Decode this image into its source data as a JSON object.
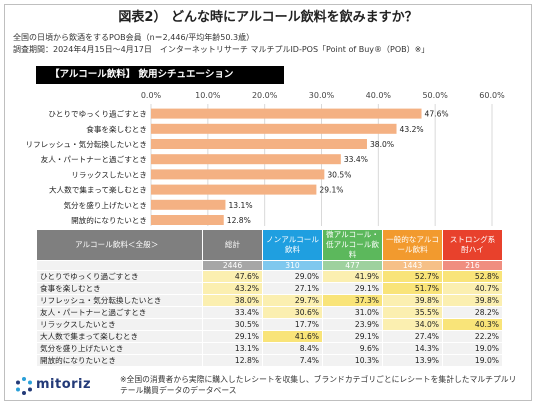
{
  "title": "図表2） どんな時にアルコール飲料を飲みますか？",
  "meta": {
    "line1": "全国の日頃から飲酒をするPOB会員（n＝2,446/平均年齢50.3歳）",
    "line2": "調査期間：2024年4月15日～4月17日　インターネットリサーチ マルチプルID-POS「Point of Buy®（POB）※」"
  },
  "colors": {
    "bar": "#f4b183",
    "grid": "#d9d9d9"
  },
  "chart_data": {
    "type": "bar",
    "orientation": "horizontal",
    "title": "【アルコール飲料】 飲用シチュエーション",
    "categories": [
      "ひとりでゆっくり過ごすとき",
      "食事を楽しむとき",
      "リフレッシュ・気分転換したいとき",
      "友人・パートナーと過ごすとき",
      "リラックスしたいとき",
      "大人数で集まって楽しむとき",
      "気分を盛り上げたいとき",
      "開放的になりたいとき"
    ],
    "values": [
      47.6,
      43.2,
      38.0,
      33.4,
      30.5,
      29.1,
      13.1,
      12.8
    ],
    "value_labels": [
      "47.6%",
      "43.2%",
      "38.0%",
      "33.4%",
      "30.5%",
      "29.1%",
      "13.1%",
      "12.8%"
    ],
    "xlim": [
      0,
      60
    ],
    "ticks": [
      "0.0%",
      "10.0%",
      "20.0%",
      "30.0%",
      "40.0%",
      "50.0%",
      "60.0%"
    ],
    "grid": true
  },
  "table": {
    "header_label": "アルコール飲料＜全般＞",
    "columns": [
      "総計",
      "ノンアルコール飲料",
      "微アルコール・低アルコール飲料",
      "一般的なアルコール飲料",
      "ストロング系酎ハイ"
    ],
    "counts": [
      "2446",
      "310",
      "477",
      "1443",
      "216"
    ],
    "rows": [
      {
        "label": "ひとりでゆっくり過ごすとき",
        "values": [
          "47.6%",
          "29.0%",
          "41.9%",
          "52.7%",
          "52.8%"
        ]
      },
      {
        "label": "食事を楽しむとき",
        "values": [
          "43.2%",
          "27.1%",
          "29.1%",
          "51.7%",
          "40.7%"
        ]
      },
      {
        "label": "リフレッシュ・気分転換したいとき",
        "values": [
          "38.0%",
          "29.7%",
          "37.3%",
          "39.8%",
          "39.8%"
        ]
      },
      {
        "label": "友人・パートナーと過ごすとき",
        "values": [
          "33.4%",
          "30.6%",
          "31.0%",
          "35.5%",
          "28.2%"
        ]
      },
      {
        "label": "リラックスしたいとき",
        "values": [
          "30.5%",
          "17.7%",
          "23.9%",
          "34.0%",
          "40.3%"
        ]
      },
      {
        "label": "大人数で集まって楽しむとき",
        "values": [
          "29.1%",
          "41.6%",
          "29.1%",
          "27.4%",
          "22.2%"
        ]
      },
      {
        "label": "気分を盛り上げたいとき",
        "values": [
          "13.1%",
          "8.4%",
          "9.6%",
          "14.3%",
          "19.0%"
        ]
      },
      {
        "label": "開放的になりたいとき",
        "values": [
          "12.8%",
          "7.4%",
          "10.3%",
          "13.9%",
          "19.0%"
        ]
      }
    ]
  },
  "logo": {
    "text": "mitoriz"
  },
  "note": "※全国の消費者から実際に購入したレシートを収集し、ブランドカテゴリごとにレシートを集計したマルチプルリテール購買データのデータベース"
}
